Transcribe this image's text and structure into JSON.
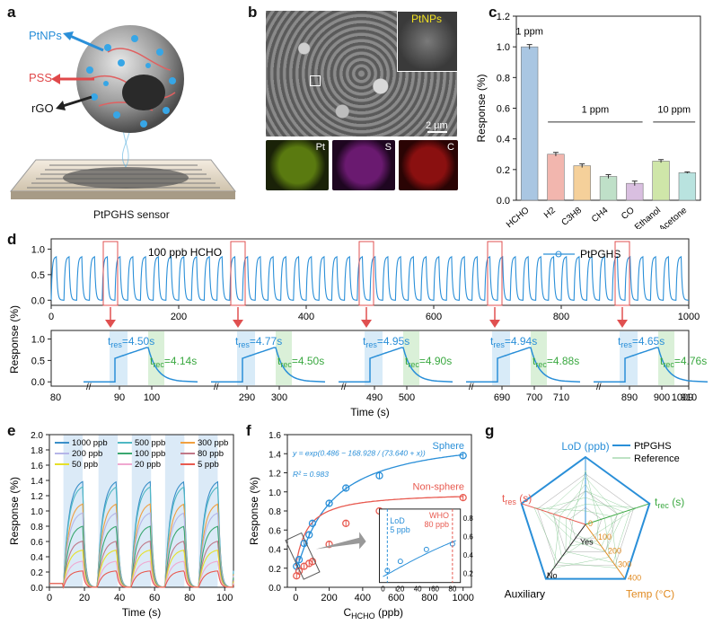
{
  "panels": {
    "a": {
      "letter": "a",
      "labels": {
        "ptnps": "PtNPs",
        "pss": "PSS",
        "rgo": "rGO"
      },
      "caption": "PtPGHS sensor",
      "colors": {
        "ptnps": "#2a8fd8",
        "pss": "#e0484a",
        "rgo": "#222222"
      }
    },
    "b": {
      "letter": "b",
      "inset_label": "PtNPs",
      "scale": "2 μm",
      "maps": [
        "Pt",
        "S",
        "C"
      ],
      "map_colors": [
        "#5a7a10",
        "#6a1a70",
        "#8a1010"
      ]
    },
    "c": {
      "letter": "c"
    },
    "d": {
      "letter": "d"
    },
    "e": {
      "letter": "e"
    },
    "f": {
      "letter": "f"
    },
    "g": {
      "letter": "g"
    }
  },
  "chart_data": [
    {
      "id": "c",
      "type": "bar",
      "categories": [
        "HCHO",
        "H2",
        "C3H8",
        "CH4",
        "CO",
        "Ethanol",
        "Acetone"
      ],
      "values": [
        1.0,
        0.3,
        0.225,
        0.155,
        0.11,
        0.255,
        0.18
      ],
      "errors": [
        0.015,
        0.012,
        0.012,
        0.012,
        0.015,
        0.01,
        0.005
      ],
      "colors": [
        "#a9c6e2",
        "#f2b6ae",
        "#f5d09a",
        "#bfe0c8",
        "#d9bfe0",
        "#cfe6a9",
        "#b9e3df"
      ],
      "ylabel": "Response (%)",
      "ylim": [
        0,
        1.2
      ],
      "yticks": [
        "0.0",
        "0.2",
        "0.4",
        "0.6",
        "0.8",
        "1.0",
        "1.2"
      ],
      "annotations": [
        "1 ppm",
        "1 ppm",
        "10 ppm"
      ]
    },
    {
      "id": "d",
      "type": "line",
      "legend": "PtPGHS",
      "annotation": "100 ppb HCHO",
      "ylabel": "Response (%)",
      "xlabel": "Time (s)",
      "top": {
        "xlim": [
          0,
          1000
        ],
        "ylim": [
          -0.1,
          1.2
        ],
        "xticks": [
          "0",
          "200",
          "400",
          "600",
          "800",
          "1000"
        ],
        "yticks": [
          "0.0",
          "0.5",
          "1.0"
        ],
        "cycles": 50,
        "peak": 0.85
      },
      "bottom": {
        "yticks": [
          "0.0",
          "0.5",
          "1.0"
        ],
        "segments": [
          {
            "tres": "4.50s",
            "trec": "4.14s",
            "ticks": [
              "90",
              "100"
            ]
          },
          {
            "tres": "4.77s",
            "trec": "4.50s",
            "ticks": [
              "290",
              "300"
            ]
          },
          {
            "tres": "4.95s",
            "trec": "4.90s",
            "ticks": [
              "490",
              "500"
            ]
          },
          {
            "tres": "4.94s",
            "trec": "4.88s",
            "ticks": [
              "690",
              "700",
              "710"
            ]
          },
          {
            "tres": "4.65s",
            "trec": "4.76s",
            "ticks": [
              "890",
              "900",
              "910"
            ]
          }
        ],
        "start_tick": "80",
        "end_tick": "1009"
      },
      "tres_label": "t",
      "tres_sub": "res",
      "trec_label": "t",
      "trec_sub": "rec"
    },
    {
      "id": "e",
      "type": "line",
      "xlabel": "Time (s)",
      "ylabel": "Response (%)",
      "xlim": [
        0,
        105
      ],
      "ylim": [
        0,
        2.0
      ],
      "xticks": [
        "0",
        "20",
        "40",
        "60",
        "80",
        "100"
      ],
      "yticks": [
        "0.0",
        "0.2",
        "0.4",
        "0.6",
        "0.8",
        "1.0",
        "1.2",
        "1.4",
        "1.6",
        "1.8",
        "2.0"
      ],
      "series": [
        {
          "name": "1000 ppb",
          "peak": 1.42,
          "color": "#3a8fc8"
        },
        {
          "name": "500 ppb",
          "peak": 1.35,
          "color": "#4fb8c4"
        },
        {
          "name": "300 ppb",
          "peak": 1.12,
          "color": "#f0a040"
        },
        {
          "name": "200 ppb",
          "peak": 1.0,
          "color": "#b5b5e8"
        },
        {
          "name": "100 ppb",
          "peak": 0.82,
          "color": "#3aa870"
        },
        {
          "name": "80 ppb",
          "peak": 0.62,
          "color": "#c07888"
        },
        {
          "name": "50 ppb",
          "peak": 0.5,
          "color": "#e6e02a"
        },
        {
          "name": "20 ppb",
          "peak": 0.35,
          "color": "#f0a8d0"
        },
        {
          "name": "5 ppb",
          "peak": 0.22,
          "color": "#e85a50"
        }
      ]
    },
    {
      "id": "f",
      "type": "scatter",
      "xlabel": "C",
      "xlabel_sub": "HCHO",
      "xlabel_unit": " (ppb)",
      "ylabel": "Response (%)",
      "xlim": [
        -50,
        1050
      ],
      "ylim": [
        0,
        1.6
      ],
      "xticks": [
        "0",
        "200",
        "400",
        "600",
        "800",
        "1000"
      ],
      "yticks": [
        "0.0",
        "0.2",
        "0.4",
        "0.6",
        "0.8",
        "1.0",
        "1.2",
        "1.4",
        "1.6"
      ],
      "series": [
        {
          "name": "Sphere",
          "color": "#2a8fd8",
          "x": [
            5,
            20,
            50,
            80,
            100,
            200,
            300,
            500,
            1000
          ],
          "y": [
            0.22,
            0.29,
            0.46,
            0.55,
            0.67,
            0.88,
            1.04,
            1.17,
            1.38
          ]
        },
        {
          "name": "Non-sphere",
          "color": "#e85a50",
          "x": [
            5,
            20,
            50,
            80,
            100,
            200,
            300,
            500,
            1000
          ],
          "y": [
            0.12,
            0.17,
            0.22,
            0.25,
            0.27,
            0.45,
            0.67,
            0.8,
            0.94
          ]
        }
      ],
      "equation": "y = exp(0.486 − 168.928 / (73.640 + x))",
      "r2": "R² = 0.983",
      "inset": {
        "xticks": [
          "0",
          "20",
          "40",
          "60",
          "80"
        ],
        "yticks": [
          "0.2",
          "0.4",
          "0.6",
          "0.8"
        ],
        "lod": "LoD",
        "lod_value": "5 ppb",
        "who": "WHO",
        "who_value": "80 ppb",
        "x": [
          5,
          20,
          50,
          80
        ],
        "y": [
          0.23,
          0.33,
          0.46,
          0.52
        ]
      }
    },
    {
      "id": "g",
      "type": "radar",
      "axes": [
        "LoD (ppb)",
        "t",
        "Temp (°C)",
        "Auxiliary",
        "t"
      ],
      "legend": [
        "PtPGHS",
        "Reference"
      ],
      "labels": {
        "lod": "LoD (ppb)",
        "trec": "t",
        "trec_sub": "rec",
        "trec_unit": " (s)",
        "temp": "Temp (°C)",
        "aux": "Auxiliary",
        "tres": "t",
        "tres_sub": "res",
        "tres_unit": " (s)",
        "yes": "Yes",
        "no": "No"
      },
      "temp_ticks": [
        "0",
        "100",
        "200",
        "300",
        "400"
      ]
    }
  ]
}
